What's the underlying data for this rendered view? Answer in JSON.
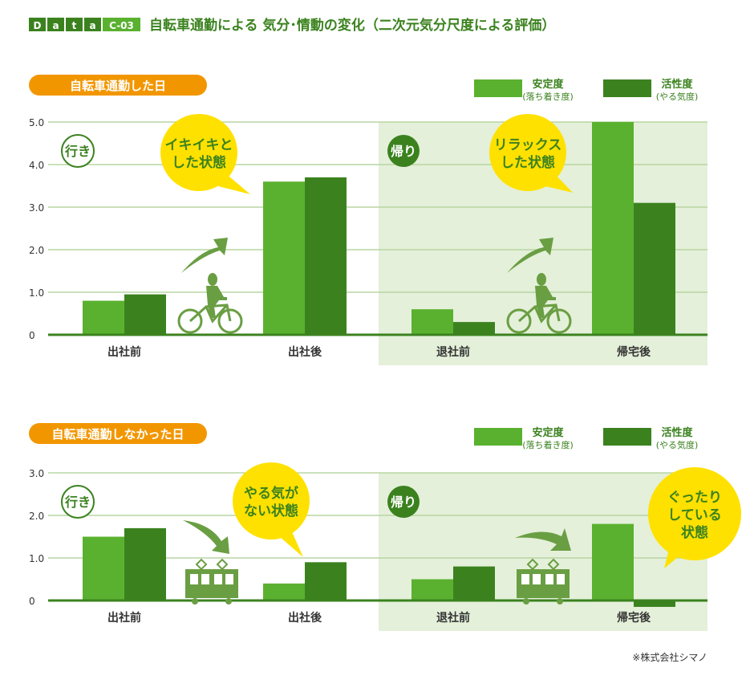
{
  "header": {
    "badge_letters": [
      "D",
      "a",
      "t",
      "a"
    ],
    "badge_code": "C-03",
    "title": "自転車通勤による 気分･情動の変化（二次元気分尺度による評価）"
  },
  "colors": {
    "stability": "#5ab12f",
    "activity": "#3b821f",
    "accent": "#f29600",
    "bubble": "#ffe100",
    "shade": "#e4f0d9",
    "text": "#3b821f"
  },
  "legend": [
    {
      "label": "安定度",
      "sub": "(落ち着き度)"
    },
    {
      "label": "活性度",
      "sub": "(やる気度)"
    }
  ],
  "chart_data": [
    {
      "type": "bar",
      "title": "自転車通勤した日",
      "categories": [
        "出社前",
        "出社後",
        "退社前",
        "帰宅後"
      ],
      "series": [
        {
          "name": "安定度",
          "values": [
            0.8,
            3.6,
            0.6,
            5.0
          ]
        },
        {
          "name": "活性度",
          "values": [
            0.95,
            3.7,
            0.3,
            3.1
          ]
        }
      ],
      "yticks": [
        "0",
        "1.0",
        "2.0",
        "3.0",
        "4.0",
        "5.0"
      ],
      "ylim": [
        0,
        5
      ],
      "grid": true,
      "legend_position": "top-right",
      "annotations": {
        "go": "行き",
        "return": "帰り",
        "bubble1": [
          "イキイキと",
          "した状態"
        ],
        "bubble2": [
          "リラックス",
          "した状態"
        ]
      }
    },
    {
      "type": "bar",
      "title": "自転車通勤しなかった日",
      "categories": [
        "出社前",
        "出社後",
        "退社前",
        "帰宅後"
      ],
      "series": [
        {
          "name": "安定度",
          "values": [
            1.5,
            0.4,
            0.5,
            1.8
          ]
        },
        {
          "name": "活性度",
          "values": [
            1.7,
            0.9,
            0.8,
            -0.15
          ]
        }
      ],
      "yticks": [
        "0",
        "1.0",
        "2.0",
        "3.0"
      ],
      "ylim": [
        0,
        3
      ],
      "grid": true,
      "legend_position": "top-right",
      "annotations": {
        "go": "行き",
        "return": "帰り",
        "bubble1": [
          "やる気が",
          "ない状態"
        ],
        "bubble2": [
          "ぐったり",
          "している",
          "状態"
        ]
      }
    }
  ],
  "footer": {
    "source": "※株式会社シマノ"
  }
}
